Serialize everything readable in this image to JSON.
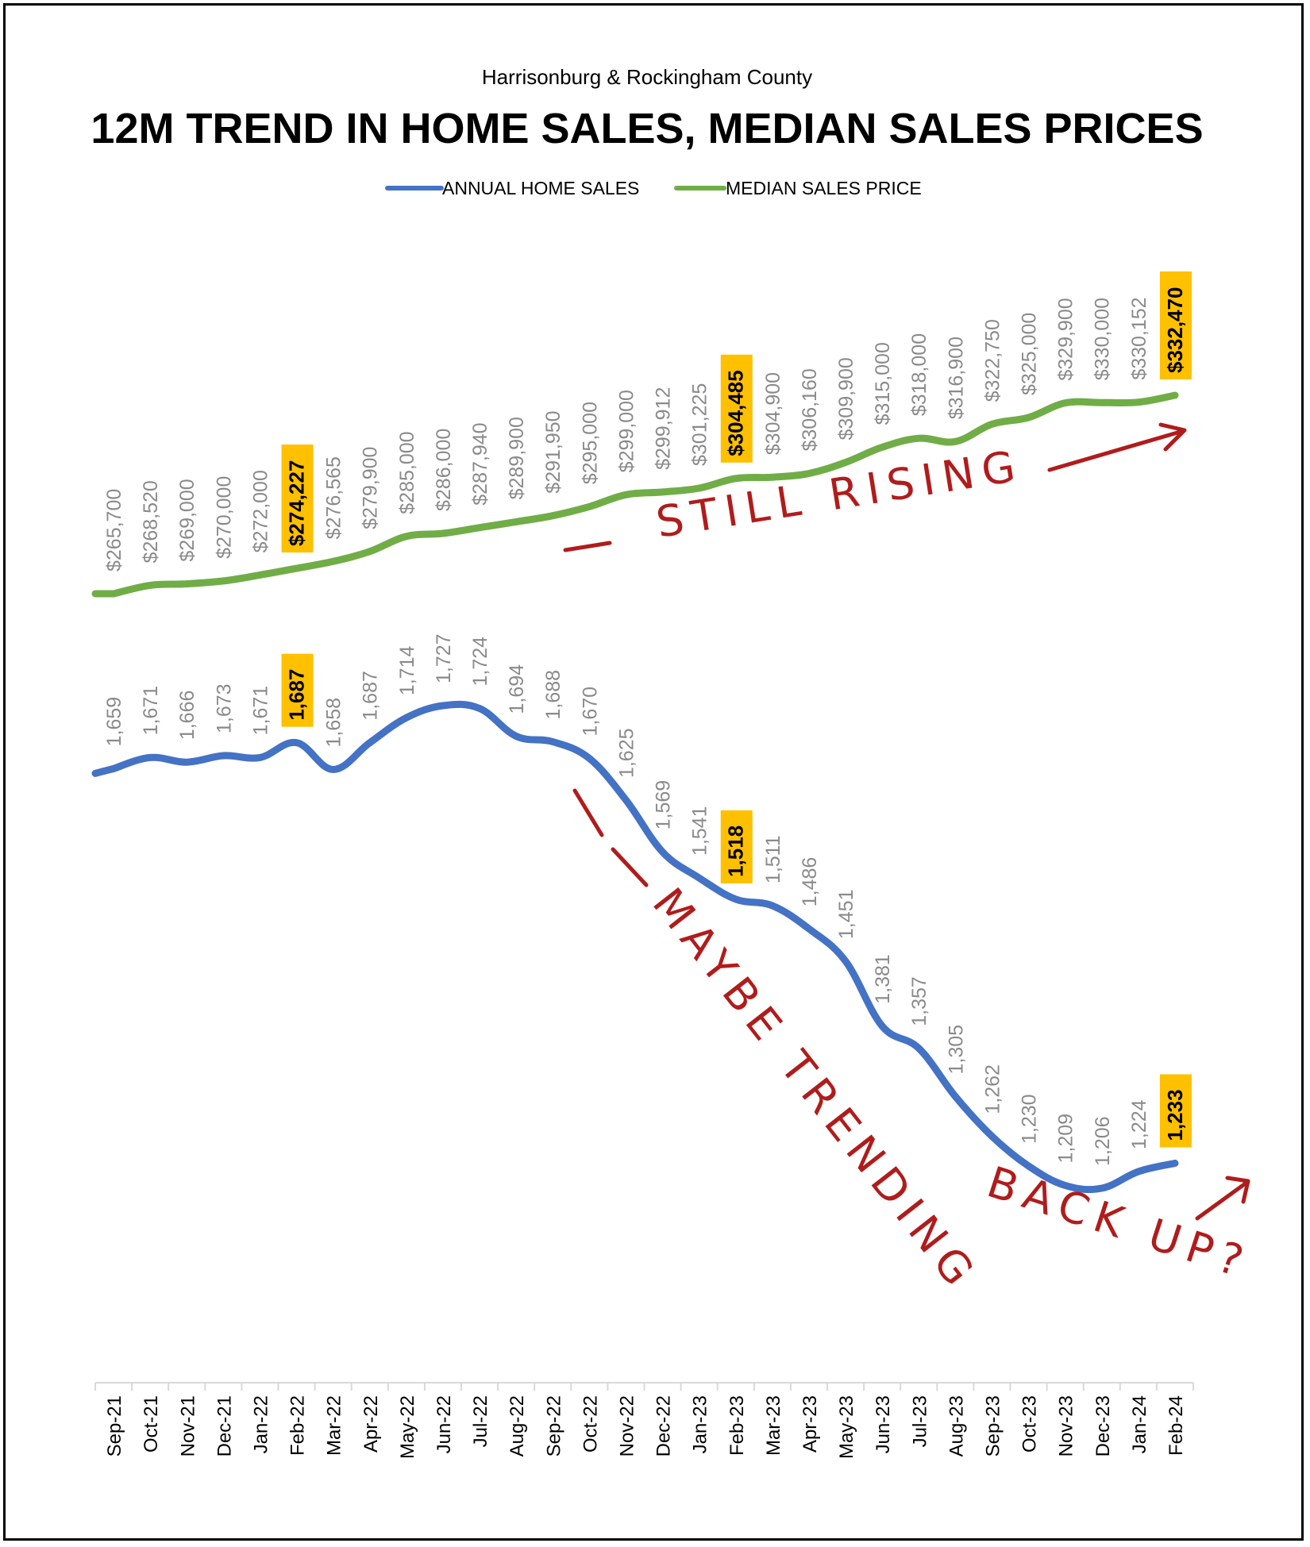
{
  "chart_data": {
    "type": "line",
    "subtitle": "Harrisonburg & Rockingham County",
    "title": "12M TREND IN HOME SALES, MEDIAN SALES PRICES",
    "legend_position": "top-center",
    "grid": false,
    "categories": [
      "Sep-21",
      "Oct-21",
      "Nov-21",
      "Dec-21",
      "Jan-22",
      "Feb-22",
      "Mar-22",
      "Apr-22",
      "May-22",
      "Jun-22",
      "Jul-22",
      "Aug-22",
      "Sep-22",
      "Oct-22",
      "Nov-22",
      "Dec-22",
      "Jan-23",
      "Feb-23",
      "Mar-23",
      "Apr-23",
      "May-23",
      "Jun-23",
      "Jul-23",
      "Aug-23",
      "Sep-23",
      "Oct-23",
      "Nov-23",
      "Dec-23",
      "Jan-24",
      "Feb-24"
    ],
    "series": [
      {
        "name": "ANNUAL HOME SALES",
        "color": "#4472c4",
        "values": [
          1659,
          1671,
          1666,
          1673,
          1671,
          1687,
          1658,
          1687,
          1714,
          1727,
          1724,
          1694,
          1688,
          1670,
          1625,
          1569,
          1541,
          1518,
          1511,
          1486,
          1451,
          1381,
          1357,
          1305,
          1262,
          1230,
          1209,
          1206,
          1224,
          1233
        ],
        "labels": [
          "1,659",
          "1,671",
          "1,666",
          "1,673",
          "1,671",
          "1,687",
          "1,658",
          "1,687",
          "1,714",
          "1,727",
          "1,724",
          "1,694",
          "1,688",
          "1,670",
          "1,625",
          "1,569",
          "1,541",
          "1,518",
          "1,511",
          "1,486",
          "1,451",
          "1,381",
          "1,357",
          "1,305",
          "1,262",
          "1,230",
          "1,209",
          "1,206",
          "1,224",
          "1,233"
        ],
        "highlighted": [
          "Feb-22",
          "Feb-23",
          "Feb-24"
        ]
      },
      {
        "name": "MEDIAN SALES PRICE",
        "color": "#70ad47",
        "values": [
          265700,
          268520,
          269000,
          270000,
          272000,
          274227,
          276565,
          279900,
          285000,
          286000,
          287940,
          289900,
          291950,
          295000,
          299000,
          299912,
          301225,
          304485,
          304900,
          306160,
          309900,
          315000,
          318000,
          316900,
          322750,
          325000,
          329900,
          330000,
          330152,
          332470
        ],
        "labels": [
          "$265,700",
          "$268,520",
          "$269,000",
          "$270,000",
          "$272,000",
          "$274,227",
          "$276,565",
          "$279,900",
          "$285,000",
          "$286,000",
          "$287,940",
          "$289,900",
          "$291,950",
          "$295,000",
          "$299,000",
          "$299,912",
          "$301,225",
          "$304,485",
          "$304,900",
          "$306,160",
          "$309,900",
          "$315,000",
          "$318,000",
          "$316,900",
          "$322,750",
          "$325,000",
          "$329,900",
          "$330,000",
          "$330,152",
          "$332,470"
        ],
        "highlighted": [
          "Feb-22",
          "Feb-23",
          "Feb-24"
        ]
      }
    ],
    "annotations": [
      "STILL RISING",
      "MAYBE TRENDING",
      "BACK UP?"
    ]
  },
  "colors": {
    "annotation": "#b01c1c",
    "highlight_fill": "#ffc000",
    "label_gray": "#8a8a8a"
  }
}
